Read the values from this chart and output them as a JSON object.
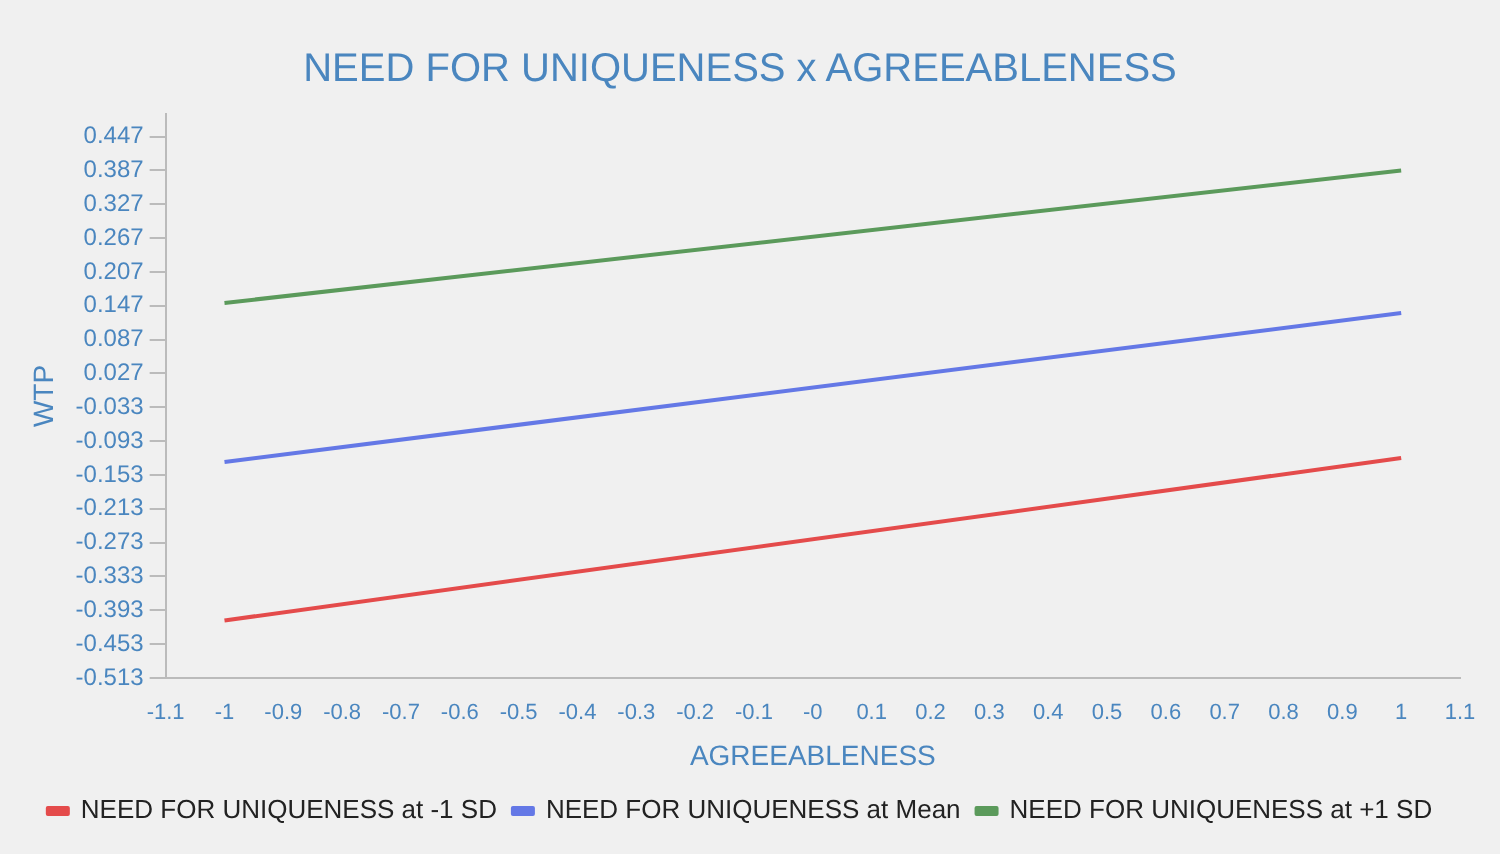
{
  "chart_data": {
    "type": "line",
    "title": "NEED FOR UNIQUENESS x AGREEABLENESS",
    "xlabel": "AGREEABLENESS",
    "ylabel": "WTP",
    "x": [
      -1,
      1
    ],
    "series": [
      {
        "name": "NEED FOR UNIQUENESS at -1 SD",
        "color": "#e44b4b",
        "values": [
          -0.411,
          -0.123
        ]
      },
      {
        "name": "NEED FOR UNIQUENESS at Mean",
        "color": "#6478e6",
        "values": [
          -0.13,
          0.134
        ]
      },
      {
        "name": "NEED FOR UNIQUENESS at +1 SD",
        "color": "#5b9a5b",
        "values": [
          0.152,
          0.387
        ]
      }
    ],
    "xlim": [
      -1.1,
      1.1
    ],
    "xticks": [
      -1.1,
      -1,
      -0.9,
      -0.8,
      -0.7,
      -0.6,
      -0.5,
      -0.4,
      -0.3,
      -0.2,
      -0.1,
      {
        "value": 0,
        "label": "-0"
      },
      0.1,
      0.2,
      0.3,
      0.4,
      0.5,
      0.6,
      0.7,
      0.8,
      0.9,
      1,
      1.1
    ],
    "ylim": [
      -0.513,
      0.487
    ],
    "yticks": [
      -0.513,
      -0.453,
      -0.393,
      -0.333,
      -0.273,
      -0.213,
      -0.153,
      -0.093,
      -0.033,
      0.027,
      0.087,
      0.147,
      0.207,
      0.267,
      0.327,
      0.387,
      0.447
    ],
    "grid": false,
    "legend": "bottom",
    "marker": "none",
    "line_style": "solid"
  }
}
